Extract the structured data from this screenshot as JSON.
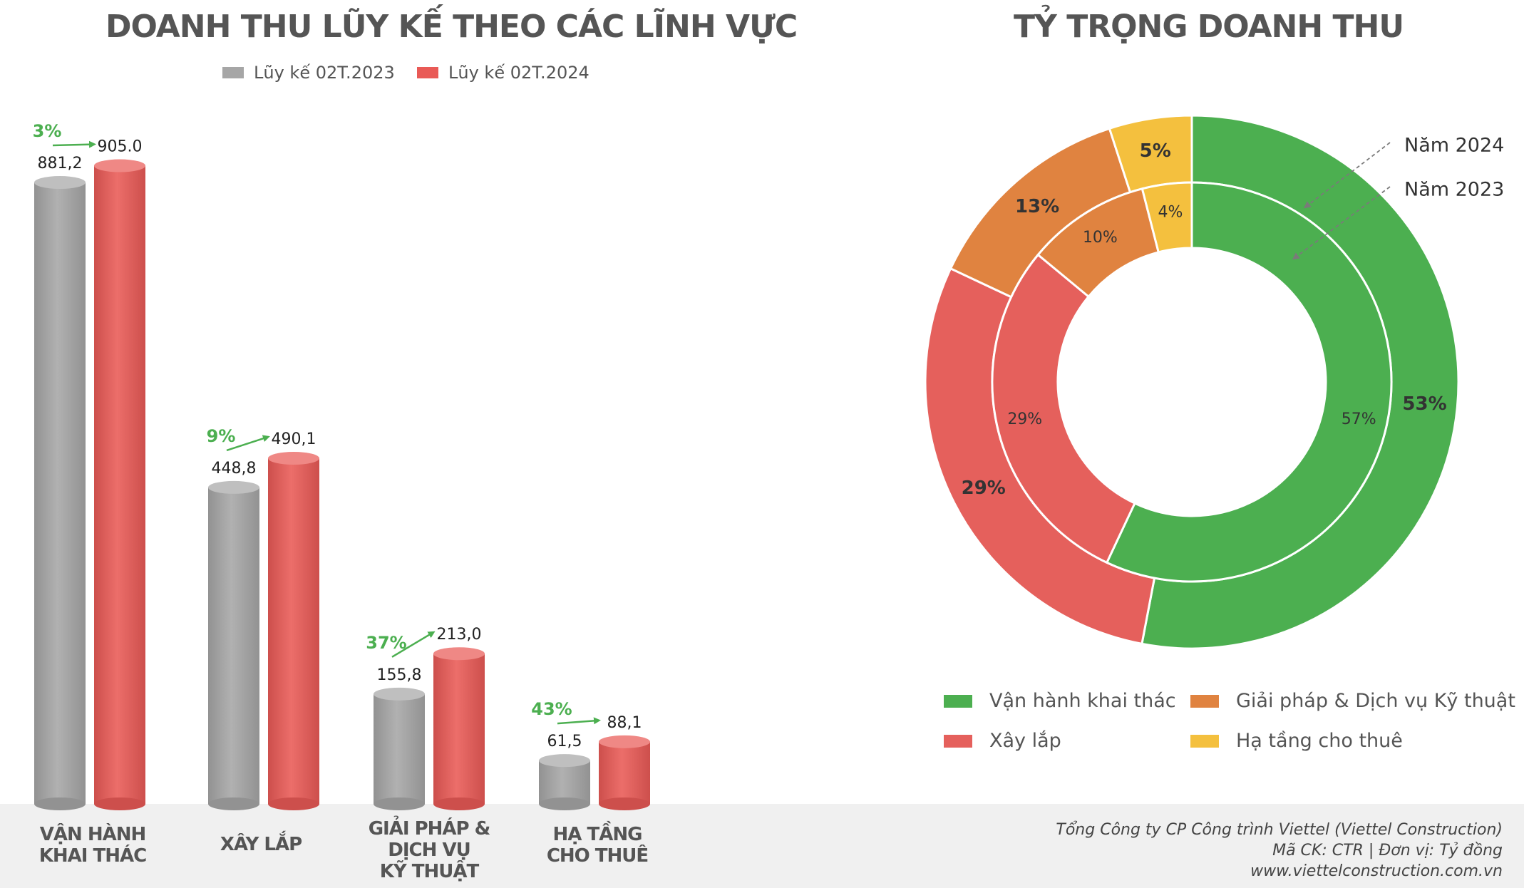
{
  "left_title": "DOANH THU LŨY KẾ THEO CÁC LĨNH VỰC",
  "right_title": "TỶ TRỌNG DOANH THU",
  "bar_legend": [
    {
      "label": "Lũy kế 02T.2023",
      "color": "#a6a6a6"
    },
    {
      "label": "Lũy kế 02T.2024",
      "color": "#e95a56"
    }
  ],
  "pie_legend": [
    {
      "label": "Vận hành khai thác",
      "color": "#4caf50"
    },
    {
      "label": "Xây lắp",
      "color": "#e5605c"
    },
    {
      "label": "Giải pháp & Dịch vụ Kỹ thuật",
      "color": "#e08340"
    },
    {
      "label": "Hạ tầng cho thuê",
      "color": "#f4c03e"
    }
  ],
  "footer": {
    "company": "Tổng Công ty CP Công trình Viettel (Viettel Construction)",
    "ticker_unit": "Mã CK: CTR  |  Đơn vị: Tỷ đồng",
    "website": "www.viettelconstruction.com.vn"
  },
  "chart_data": [
    {
      "type": "bar",
      "title": "DOANH THU LŨY KẾ THEO CÁC LĨNH VỰC",
      "categories": [
        "VẬN HÀNH\nKHAI THÁC",
        "XÂY LẮP",
        "GIẢI PHÁP &\nDỊCH VỤ\nKỸ THUẬT",
        "HẠ TẦNG\nCHO THUÊ"
      ],
      "series": [
        {
          "name": "Lũy kế 02T.2023",
          "values": [
            881.2,
            448.8,
            155.8,
            61.5
          ],
          "labels": [
            "881,2",
            "448,8",
            "155,8",
            "61,5"
          ],
          "color": "#a6a6a6"
        },
        {
          "name": "Lũy kế 02T.2024",
          "values": [
            905.0,
            490.1,
            213.0,
            88.1
          ],
          "labels": [
            "905.0",
            "490,1",
            "213,0",
            "88,1"
          ],
          "color": "#e95a56"
        }
      ],
      "growth": [
        "3%",
        "9%",
        "37%",
        "43%"
      ],
      "growth_color": "#4caf50",
      "legend": "top"
    },
    {
      "type": "pie",
      "title": "TỶ TRỌNG DOANH THU",
      "categories": [
        "Vận hành khai thác",
        "Xây lắp",
        "Giải pháp & Dịch vụ Kỹ thuật",
        "Hạ tầng cho thuê"
      ],
      "series": [
        {
          "name": "Năm 2024",
          "values": [
            53,
            29,
            13,
            5
          ],
          "labels": [
            "53%",
            "29%",
            "13%",
            "5%"
          ]
        },
        {
          "name": "Năm 2023",
          "values": [
            57,
            29,
            10,
            4
          ],
          "labels": [
            "57%",
            "29%",
            "10%",
            "4%"
          ]
        }
      ],
      "colors": [
        "#4caf50",
        "#e5605c",
        "#e08340",
        "#f4c03e"
      ],
      "legend": "bottom"
    }
  ]
}
